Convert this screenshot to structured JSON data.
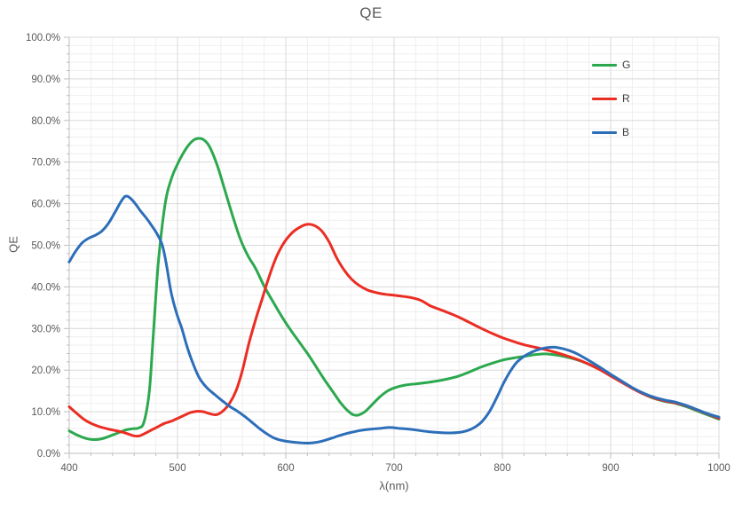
{
  "chart_data": {
    "type": "line",
    "title": "QE",
    "xlabel": "λ(nm)",
    "ylabel": "QE",
    "grid": true,
    "legend_position": "top-right",
    "x_axis": {
      "min": 400,
      "max": 1000,
      "major_step": 100,
      "minor_step": 20,
      "tick_labels": [
        "400",
        "500",
        "600",
        "700",
        "800",
        "900",
        "1000"
      ]
    },
    "y_axis": {
      "min": 0,
      "max": 100,
      "major_step": 10,
      "minor_step": 2,
      "tick_labels": [
        "0.0%",
        "10.0%",
        "20.0%",
        "30.0%",
        "40.0%",
        "50.0%",
        "60.0%",
        "70.0%",
        "80.0%",
        "90.0%",
        "100.0%"
      ]
    },
    "series": [
      {
        "name": "G",
        "color": "#2CA84E",
        "points": [
          [
            400,
            5.4
          ],
          [
            408,
            4.3
          ],
          [
            415,
            3.6
          ],
          [
            422,
            3.3
          ],
          [
            430,
            3.5
          ],
          [
            438,
            4.2
          ],
          [
            446,
            5.0
          ],
          [
            452,
            5.6
          ],
          [
            458,
            5.9
          ],
          [
            464,
            6.1
          ],
          [
            469,
            7.5
          ],
          [
            474,
            15
          ],
          [
            478,
            30
          ],
          [
            482,
            45
          ],
          [
            486,
            55
          ],
          [
            490,
            62
          ],
          [
            495,
            66.5
          ],
          [
            500,
            69.5
          ],
          [
            505,
            72
          ],
          [
            510,
            74
          ],
          [
            515,
            75.3
          ],
          [
            520,
            75.7
          ],
          [
            525,
            75.2
          ],
          [
            530,
            73.5
          ],
          [
            537,
            69
          ],
          [
            544,
            63
          ],
          [
            551,
            57
          ],
          [
            558,
            51.5
          ],
          [
            565,
            47.5
          ],
          [
            572,
            44.5
          ],
          [
            580,
            40.2
          ],
          [
            588,
            36.5
          ],
          [
            596,
            33
          ],
          [
            604,
            29.8
          ],
          [
            612,
            26.9
          ],
          [
            620,
            24
          ],
          [
            628,
            20.8
          ],
          [
            636,
            17.6
          ],
          [
            644,
            14.6
          ],
          [
            651,
            12
          ],
          [
            657,
            10.3
          ],
          [
            662,
            9.3
          ],
          [
            667,
            9.2
          ],
          [
            673,
            10
          ],
          [
            680,
            11.8
          ],
          [
            687,
            13.6
          ],
          [
            694,
            15
          ],
          [
            701,
            15.8
          ],
          [
            710,
            16.4
          ],
          [
            720,
            16.7
          ],
          [
            730,
            17
          ],
          [
            740,
            17.4
          ],
          [
            750,
            17.9
          ],
          [
            760,
            18.6
          ],
          [
            770,
            19.6
          ],
          [
            780,
            20.7
          ],
          [
            790,
            21.6
          ],
          [
            800,
            22.4
          ],
          [
            810,
            22.9
          ],
          [
            820,
            23.3
          ],
          [
            830,
            23.7
          ],
          [
            840,
            23.9
          ],
          [
            850,
            23.6
          ],
          [
            860,
            23.1
          ],
          [
            870,
            22.4
          ],
          [
            880,
            21.4
          ],
          [
            890,
            20.1
          ],
          [
            900,
            18.7
          ],
          [
            910,
            17.2
          ],
          [
            920,
            15.7
          ],
          [
            930,
            14.3
          ],
          [
            940,
            13.2
          ],
          [
            950,
            12.5
          ],
          [
            960,
            12.0
          ],
          [
            970,
            11.2
          ],
          [
            980,
            10.2
          ],
          [
            990,
            9.2
          ],
          [
            1000,
            8.2
          ]
        ]
      },
      {
        "name": "R",
        "color": "#EB2D23",
        "points": [
          [
            400,
            11.2
          ],
          [
            407,
            9.6
          ],
          [
            414,
            8.1
          ],
          [
            421,
            7.1
          ],
          [
            428,
            6.4
          ],
          [
            435,
            5.9
          ],
          [
            442,
            5.5
          ],
          [
            449,
            5.1
          ],
          [
            455,
            4.6
          ],
          [
            460,
            4.2
          ],
          [
            465,
            4.2
          ],
          [
            470,
            4.8
          ],
          [
            476,
            5.6
          ],
          [
            482,
            6.4
          ],
          [
            488,
            7.2
          ],
          [
            494,
            7.7
          ],
          [
            500,
            8.4
          ],
          [
            506,
            9.1
          ],
          [
            512,
            9.8
          ],
          [
            518,
            10.1
          ],
          [
            524,
            10.0
          ],
          [
            530,
            9.5
          ],
          [
            536,
            9.3
          ],
          [
            542,
            10.2
          ],
          [
            548,
            12
          ],
          [
            554,
            15
          ],
          [
            560,
            20
          ],
          [
            566,
            26.5
          ],
          [
            572,
            32
          ],
          [
            578,
            37
          ],
          [
            584,
            42
          ],
          [
            591,
            47
          ],
          [
            598,
            50.5
          ],
          [
            605,
            52.8
          ],
          [
            612,
            54.2
          ],
          [
            619,
            55
          ],
          [
            626,
            54.8
          ],
          [
            633,
            53.5
          ],
          [
            640,
            50.8
          ],
          [
            647,
            47
          ],
          [
            654,
            44
          ],
          [
            661,
            41.8
          ],
          [
            668,
            40.3
          ],
          [
            676,
            39.2
          ],
          [
            684,
            38.6
          ],
          [
            692,
            38.2
          ],
          [
            700,
            38
          ],
          [
            709,
            37.7
          ],
          [
            718,
            37.3
          ],
          [
            726,
            36.6
          ],
          [
            733,
            35.5
          ],
          [
            741,
            34.7
          ],
          [
            750,
            33.8
          ],
          [
            760,
            32.7
          ],
          [
            770,
            31.4
          ],
          [
            780,
            30.1
          ],
          [
            790,
            28.9
          ],
          [
            800,
            27.8
          ],
          [
            810,
            26.9
          ],
          [
            820,
            26.1
          ],
          [
            830,
            25.5
          ],
          [
            840,
            24.9
          ],
          [
            850,
            24.2
          ],
          [
            860,
            23.4
          ],
          [
            870,
            22.5
          ],
          [
            880,
            21.4
          ],
          [
            890,
            20.1
          ],
          [
            900,
            18.6
          ],
          [
            910,
            17.1
          ],
          [
            920,
            15.6
          ],
          [
            930,
            14.3
          ],
          [
            940,
            13.3
          ],
          [
            950,
            12.6
          ],
          [
            960,
            12.1
          ],
          [
            970,
            11.4
          ],
          [
            980,
            10.4
          ],
          [
            990,
            9.4
          ],
          [
            1000,
            8.4
          ]
        ]
      },
      {
        "name": "B",
        "color": "#2D6EB9",
        "points": [
          [
            400,
            46
          ],
          [
            406,
            48.6
          ],
          [
            412,
            50.6
          ],
          [
            418,
            51.7
          ],
          [
            424,
            52.4
          ],
          [
            430,
            53.4
          ],
          [
            436,
            55.2
          ],
          [
            442,
            57.8
          ],
          [
            448,
            60.6
          ],
          [
            452,
            61.8
          ],
          [
            456,
            61.4
          ],
          [
            461,
            60
          ],
          [
            466,
            58.2
          ],
          [
            471,
            56.6
          ],
          [
            476,
            54.8
          ],
          [
            481,
            52.8
          ],
          [
            486,
            50
          ],
          [
            490,
            45
          ],
          [
            494,
            38.8
          ],
          [
            499,
            33.8
          ],
          [
            504,
            30
          ],
          [
            509,
            25.5
          ],
          [
            514,
            21.8
          ],
          [
            520,
            18.2
          ],
          [
            527,
            15.8
          ],
          [
            534,
            14.2
          ],
          [
            541,
            12.7
          ],
          [
            548,
            11.3
          ],
          [
            555,
            10.2
          ],
          [
            562,
            8.9
          ],
          [
            569,
            7.4
          ],
          [
            576,
            5.9
          ],
          [
            583,
            4.6
          ],
          [
            590,
            3.6
          ],
          [
            598,
            3.0
          ],
          [
            606,
            2.7
          ],
          [
            615,
            2.5
          ],
          [
            624,
            2.5
          ],
          [
            633,
            2.9
          ],
          [
            642,
            3.6
          ],
          [
            651,
            4.4
          ],
          [
            660,
            5.0
          ],
          [
            669,
            5.5
          ],
          [
            678,
            5.8
          ],
          [
            687,
            6.0
          ],
          [
            696,
            6.2
          ],
          [
            705,
            6.0
          ],
          [
            714,
            5.8
          ],
          [
            723,
            5.5
          ],
          [
            732,
            5.2
          ],
          [
            741,
            5.0
          ],
          [
            750,
            4.9
          ],
          [
            759,
            5.0
          ],
          [
            767,
            5.4
          ],
          [
            774,
            6.2
          ],
          [
            781,
            7.6
          ],
          [
            788,
            10
          ],
          [
            795,
            13.5
          ],
          [
            801,
            16.8
          ],
          [
            807,
            19.6
          ],
          [
            813,
            21.8
          ],
          [
            820,
            23.3
          ],
          [
            827,
            24.3
          ],
          [
            834,
            25.0
          ],
          [
            841,
            25.4
          ],
          [
            848,
            25.5
          ],
          [
            855,
            25.2
          ],
          [
            862,
            24.7
          ],
          [
            870,
            23.8
          ],
          [
            880,
            22.3
          ],
          [
            890,
            20.7
          ],
          [
            900,
            19.0
          ],
          [
            910,
            17.4
          ],
          [
            920,
            15.8
          ],
          [
            930,
            14.5
          ],
          [
            940,
            13.5
          ],
          [
            950,
            12.8
          ],
          [
            960,
            12.3
          ],
          [
            970,
            11.5
          ],
          [
            980,
            10.5
          ],
          [
            990,
            9.5
          ],
          [
            1000,
            8.7
          ]
        ]
      }
    ]
  }
}
